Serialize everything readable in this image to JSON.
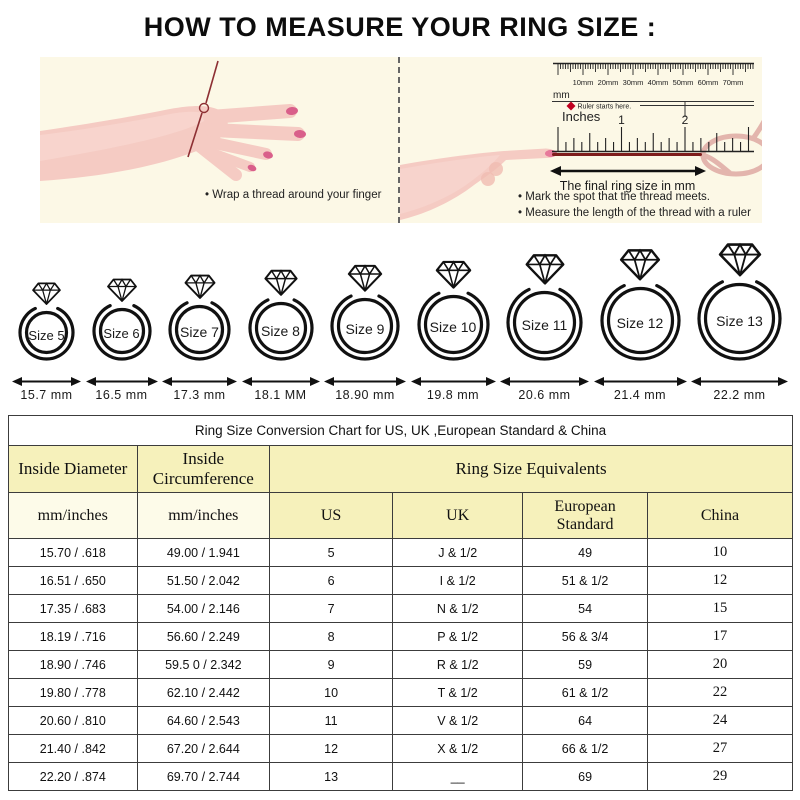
{
  "title": "HOW TO MEASURE YOUR RING SIZE :",
  "colors": {
    "panel_bg": "#fcf8e6",
    "hand_pink": "#f5cbc3",
    "nail_pink": "#d95f8a",
    "thread_dark_red": "#7e1d1c",
    "thread_pale_pink": "#e3b5ad",
    "table_header_yellow": "#f6f1bb",
    "table_header_cream": "#fdfbe9",
    "table_border": "#3c3c3c"
  },
  "left_panel": {
    "bullets": [
      "Wrap a thread around your finger"
    ]
  },
  "right_panel": {
    "ruler": {
      "mm_tick_labels": [
        "10mm",
        "20mm",
        "30mm",
        "40mm",
        "50mm",
        "60mm",
        "70mm"
      ],
      "mm_unit_label": "mm",
      "start_note": "Ruler starts here.",
      "inches_label": "Inches",
      "inch_numbers": [
        "1",
        "2"
      ]
    },
    "arrow_label": "The final ring size in mm",
    "bullets": [
      "Mark the spot that the thread meets.",
      "Measure the length of the thread with a ruler"
    ]
  },
  "rings": [
    {
      "label": "Size 5",
      "diameter": "15.7 mm"
    },
    {
      "label": "Size 6",
      "diameter": "16.5 mm"
    },
    {
      "label": "Size 7",
      "diameter": "17.3 mm"
    },
    {
      "label": "Size 8",
      "diameter": "18.1 MM"
    },
    {
      "label": "Size 9",
      "diameter": "18.90 mm"
    },
    {
      "label": "Size 10",
      "diameter": "19.8 mm"
    },
    {
      "label": "Size 11",
      "diameter": "20.6 mm"
    },
    {
      "label": "Size 12",
      "diameter": "21.4 mm"
    },
    {
      "label": "Size 13",
      "diameter": "22.2 mm"
    }
  ],
  "table": {
    "title": "Ring Size Conversion Chart for US, UK ,European Standard & China",
    "group_headers": {
      "inside_diameter": "Inside Diameter",
      "inside_circumference": "Inside Circumference",
      "equivalents": "Ring Size Equivalents"
    },
    "sub_headers": [
      "mm/inches",
      "mm/inches",
      "US",
      "UK",
      "European Standard",
      "China"
    ],
    "rows": [
      [
        "15.70 / .618",
        "49.00 / 1.941",
        "5",
        "J & 1/2",
        "49",
        "10"
      ],
      [
        "16.51 / .650",
        "51.50 / 2.042",
        "6",
        "I & 1/2",
        "51 & 1/2",
        "12"
      ],
      [
        "17.35 / .683",
        "54.00 / 2.146",
        "7",
        "N & 1/2",
        "54",
        "15"
      ],
      [
        "18.19 / .716",
        "56.60 / 2.249",
        "8",
        "P & 1/2",
        "56 & 3/4",
        "17"
      ],
      [
        "18.90 / .746",
        "59.5 0 / 2.342",
        "9",
        "R & 1/2",
        "59",
        "20"
      ],
      [
        "19.80 / .778",
        "62.10 / 2.442",
        "10",
        "T & 1/2",
        "61 & 1/2",
        "22"
      ],
      [
        "20.60 / .810",
        "64.60 / 2.543",
        "11",
        "V & 1/2",
        "64",
        "24"
      ],
      [
        "21.40 / .842",
        "67.20 / 2.644",
        "12",
        "X & 1/2",
        "66 & 1/2",
        "27"
      ],
      [
        "22.20 / .874",
        "69.70 / 2.744",
        "13",
        "__",
        "69",
        "29"
      ]
    ]
  }
}
